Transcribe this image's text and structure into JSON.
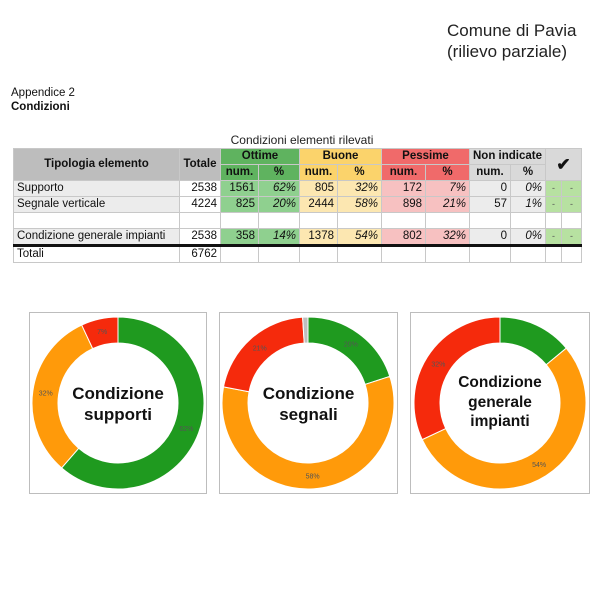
{
  "header": {
    "comune": "Comune di Pavia",
    "note": "(rilievo parziale)"
  },
  "appendix": {
    "label": "Appendice 2",
    "section": "Condizioni"
  },
  "table": {
    "caption": "Condizioni elementi rilevati",
    "headers": {
      "tipologia": "Tipologia elemento",
      "totale": "Totale",
      "ottime": "Ottime",
      "buone": "Buone",
      "pessime": "Pessime",
      "non_indicate": "Non indicate",
      "num": "num.",
      "pct": "%",
      "check": "✔"
    },
    "rows": [
      {
        "label": "Supporto",
        "totale": "2538",
        "ottime_num": "1561",
        "ottime_pct": "62%",
        "buone_num": "805",
        "buone_pct": "32%",
        "pessime_num": "172",
        "pessime_pct": "7%",
        "ni_num": "0",
        "ni_pct": "0%",
        "c1": "-",
        "c2": "-"
      },
      {
        "label": "Segnale verticale",
        "totale": "4224",
        "ottime_num": "825",
        "ottime_pct": "20%",
        "buone_num": "2444",
        "buone_pct": "58%",
        "pessime_num": "898",
        "pessime_pct": "21%",
        "ni_num": "57",
        "ni_pct": "1%",
        "c1": "-",
        "c2": "-"
      },
      {
        "label": "Condizione generale impianti",
        "totale": "2538",
        "ottime_num": "358",
        "ottime_pct": "14%",
        "buone_num": "1378",
        "buone_pct": "54%",
        "pessime_num": "802",
        "pessime_pct": "32%",
        "ni_num": "0",
        "ni_pct": "0%",
        "c1": "-",
        "c2": "-"
      }
    ],
    "totals": {
      "label": "Totali",
      "totale": "6762"
    }
  },
  "colors": {
    "ottime": "#1f9a1f",
    "buone": "#ff9a0a",
    "pessime": "#f52a0c",
    "non_indicate": "#bfbfbf"
  },
  "charts": [
    {
      "title_lines": [
        "Condizione",
        "supporti"
      ],
      "segments": [
        {
          "key": "ottime",
          "value": 62,
          "label": "62%"
        },
        {
          "key": "buone",
          "value": 32,
          "label": "32%"
        },
        {
          "key": "pessime",
          "value": 7,
          "label": "7%"
        }
      ]
    },
    {
      "title_lines": [
        "Condizione",
        "segnali"
      ],
      "segments": [
        {
          "key": "ottime",
          "value": 20,
          "label": "20%"
        },
        {
          "key": "buone",
          "value": 58,
          "label": "58%"
        },
        {
          "key": "pessime",
          "value": 21,
          "label": "21%"
        },
        {
          "key": "non_indicate",
          "value": 1,
          "label": ""
        }
      ]
    },
    {
      "title_lines": [
        "Condizione",
        "generale",
        "impianti"
      ],
      "segments": [
        {
          "key": "ottime",
          "value": 14,
          "label": ""
        },
        {
          "key": "buone",
          "value": 54,
          "label": "54%"
        },
        {
          "key": "pessime",
          "value": 32,
          "label": "32%"
        }
      ]
    }
  ]
}
